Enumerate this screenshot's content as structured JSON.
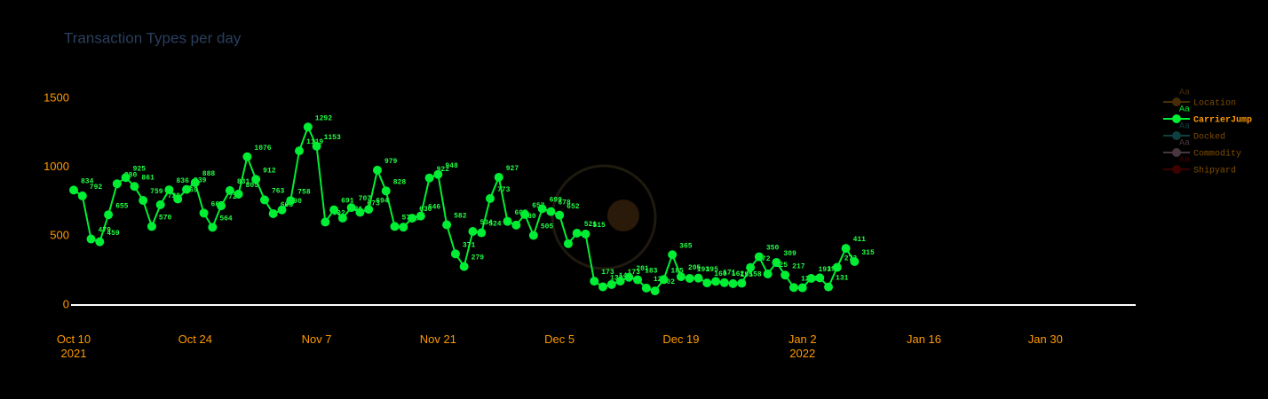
{
  "chart_data": {
    "type": "line",
    "title": "Transaction Types per day",
    "x": [
      "2021-10-10",
      "2021-10-11",
      "2021-10-12",
      "2021-10-13",
      "2021-10-14",
      "2021-10-15",
      "2021-10-16",
      "2021-10-17",
      "2021-10-18",
      "2021-10-19",
      "2021-10-20",
      "2021-10-21",
      "2021-10-22",
      "2021-10-23",
      "2021-10-24",
      "2021-10-25",
      "2021-10-26",
      "2021-10-27",
      "2021-10-28",
      "2021-10-29",
      "2021-10-30",
      "2021-10-31",
      "2021-11-01",
      "2021-11-02",
      "2021-11-03",
      "2021-11-04",
      "2021-11-05",
      "2021-11-06",
      "2021-11-07",
      "2021-11-08",
      "2021-11-09",
      "2021-11-10",
      "2021-11-11",
      "2021-11-12",
      "2021-11-13",
      "2021-11-14",
      "2021-11-15",
      "2021-11-16",
      "2021-11-17",
      "2021-11-18",
      "2021-11-19",
      "2021-11-20",
      "2021-11-21",
      "2021-11-22",
      "2021-11-23",
      "2021-11-24",
      "2021-11-25",
      "2021-11-26",
      "2021-11-27",
      "2021-11-28",
      "2021-11-29",
      "2021-11-30",
      "2021-12-01",
      "2021-12-02",
      "2021-12-03",
      "2021-12-04",
      "2021-12-05",
      "2021-12-06",
      "2021-12-07",
      "2021-12-08",
      "2021-12-09",
      "2021-12-10",
      "2021-12-11",
      "2021-12-12",
      "2021-12-13",
      "2021-12-14",
      "2021-12-15",
      "2021-12-16",
      "2021-12-17",
      "2021-12-18",
      "2021-12-19",
      "2021-12-20",
      "2021-12-21",
      "2021-12-22",
      "2021-12-23",
      "2021-12-24",
      "2021-12-25",
      "2021-12-26",
      "2021-12-27",
      "2021-12-28",
      "2021-12-29",
      "2021-12-30",
      "2021-12-31",
      "2022-01-01",
      "2022-01-02",
      "2022-01-03",
      "2022-01-04",
      "2022-01-05",
      "2022-01-06",
      "2022-01-07",
      "2022-01-08"
    ],
    "series": [
      {
        "name": "Location",
        "color": "#8b5a0a",
        "visible": false
      },
      {
        "name": "CarrierJump",
        "color": "#00ee33",
        "visible": true,
        "values": [
          834,
          792,
          479,
          459,
          655,
          880,
          925,
          861,
          759,
          570,
          728,
          836,
          769,
          839,
          888,
          667,
          564,
          720,
          831,
          805,
          1076,
          912,
          763,
          663,
          690,
          758,
          1119,
          1292,
          1153,
          602,
          691,
          631,
          707,
          673,
          694,
          979,
          828,
          570,
          565,
          630,
          646,
          922,
          948,
          582,
          371,
          279,
          534,
          524,
          773,
          927,
          607,
          580,
          657,
          505,
          699,
          678,
          652,
          445,
          521,
          515,
          173,
          132,
          149,
          173,
          201,
          183,
          123,
          102,
          185,
          365,
          205,
          193,
          195,
          160,
          171,
          162,
          155,
          158,
          272,
          350,
          225,
          309,
          217,
          127,
          125,
          193,
          197,
          131,
          273,
          411,
          315
        ]
      },
      {
        "name": "Docked",
        "color": "#1f7f7f",
        "visible": false
      },
      {
        "name": "Commodity",
        "color": "#8f6f7f",
        "visible": false
      },
      {
        "name": "Shipyard",
        "color": "#7f0000",
        "visible": false
      }
    ],
    "legend_symbol_text": "Aa",
    "legend": "top-right",
    "xlim": [
      "2021-10-10",
      "2022-02-09"
    ],
    "xticks": [
      {
        "value": "2021-10-10",
        "label": "Oct 10\n2021"
      },
      {
        "value": "2021-10-24",
        "label": "Oct 24"
      },
      {
        "value": "2021-11-07",
        "label": "Nov 7"
      },
      {
        "value": "2021-11-21",
        "label": "Nov 21"
      },
      {
        "value": "2021-12-05",
        "label": "Dec 5"
      },
      {
        "value": "2021-12-19",
        "label": "Dec 19"
      },
      {
        "value": "2022-01-02",
        "label": "Jan 2\n2022"
      },
      {
        "value": "2022-01-16",
        "label": "Jan 16"
      },
      {
        "value": "2022-01-30",
        "label": "Jan 30"
      }
    ],
    "ylim": [
      -100,
      1560
    ],
    "yticks": [
      0,
      500,
      1000,
      1500
    ],
    "zeroline": true
  }
}
